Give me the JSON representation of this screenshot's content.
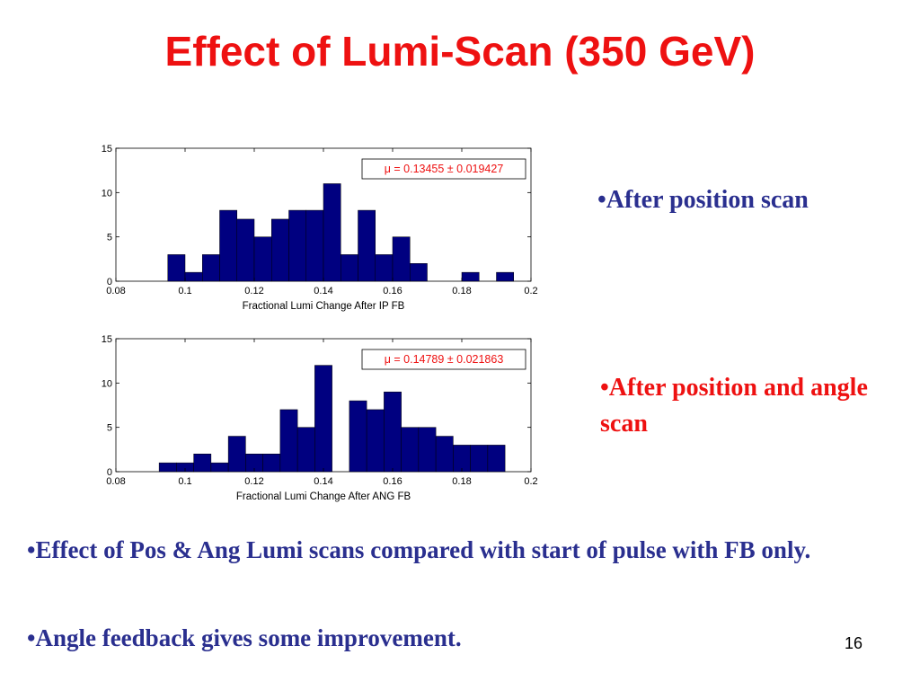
{
  "slide": {
    "title": "Effect of Lumi-Scan (350 GeV)",
    "note1": "•After position scan",
    "note2": "•After position and angle scan",
    "bullet1": "•Effect of Pos & Ang Lumi scans compared with start of pulse with FB only.",
    "bullet2": "•Angle feedback gives some improvement.",
    "page_number": "16"
  },
  "colors": {
    "title": "#ee1111",
    "bar_fill": "#000080",
    "annotation": "#ee1111",
    "body_text": "#2a2f8f"
  },
  "chart_data": [
    {
      "type": "bar",
      "xlabel": "Fractional Lumi Change After IP FB",
      "ylabel": "",
      "xlim": [
        0.08,
        0.2
      ],
      "ylim": [
        0,
        15
      ],
      "xticks": [
        "0.08",
        "0.1",
        "0.12",
        "0.14",
        "0.16",
        "0.18",
        "0.2"
      ],
      "yticks": [
        "0",
        "5",
        "10",
        "15"
      ],
      "bin_width": 0.005,
      "bin_starts": [
        0.095,
        0.1,
        0.105,
        0.11,
        0.115,
        0.12,
        0.125,
        0.13,
        0.135,
        0.14,
        0.145,
        0.15,
        0.155,
        0.16,
        0.165,
        0.17,
        0.175,
        0.18,
        0.185,
        0.19
      ],
      "values": [
        3,
        1,
        3,
        8,
        7,
        5,
        7,
        8,
        8,
        11,
        3,
        8,
        3,
        5,
        2,
        0,
        0,
        1,
        0,
        1
      ],
      "annotation": "μ = 0.13455 ± 0.019427"
    },
    {
      "type": "bar",
      "xlabel": "Fractional Lumi Change After ANG FB",
      "ylabel": "",
      "xlim": [
        0.08,
        0.2
      ],
      "ylim": [
        0,
        15
      ],
      "xticks": [
        "0.08",
        "0.1",
        "0.12",
        "0.14",
        "0.16",
        "0.18",
        "0.2"
      ],
      "yticks": [
        "0",
        "5",
        "10",
        "15"
      ],
      "bin_width": 0.005,
      "bin_starts": [
        0.0925,
        0.0975,
        0.1025,
        0.1075,
        0.1125,
        0.1175,
        0.1225,
        0.1275,
        0.1325,
        0.1375,
        0.1425,
        0.1475,
        0.1525,
        0.1575,
        0.1625,
        0.1675,
        0.1725,
        0.1775,
        0.1825,
        0.1875
      ],
      "values": [
        1,
        1,
        2,
        1,
        4,
        2,
        2,
        7,
        5,
        12,
        0,
        8,
        7,
        9,
        5,
        5,
        4,
        3,
        3,
        3
      ],
      "annotation": "μ = 0.14789 ± 0.021863"
    }
  ]
}
